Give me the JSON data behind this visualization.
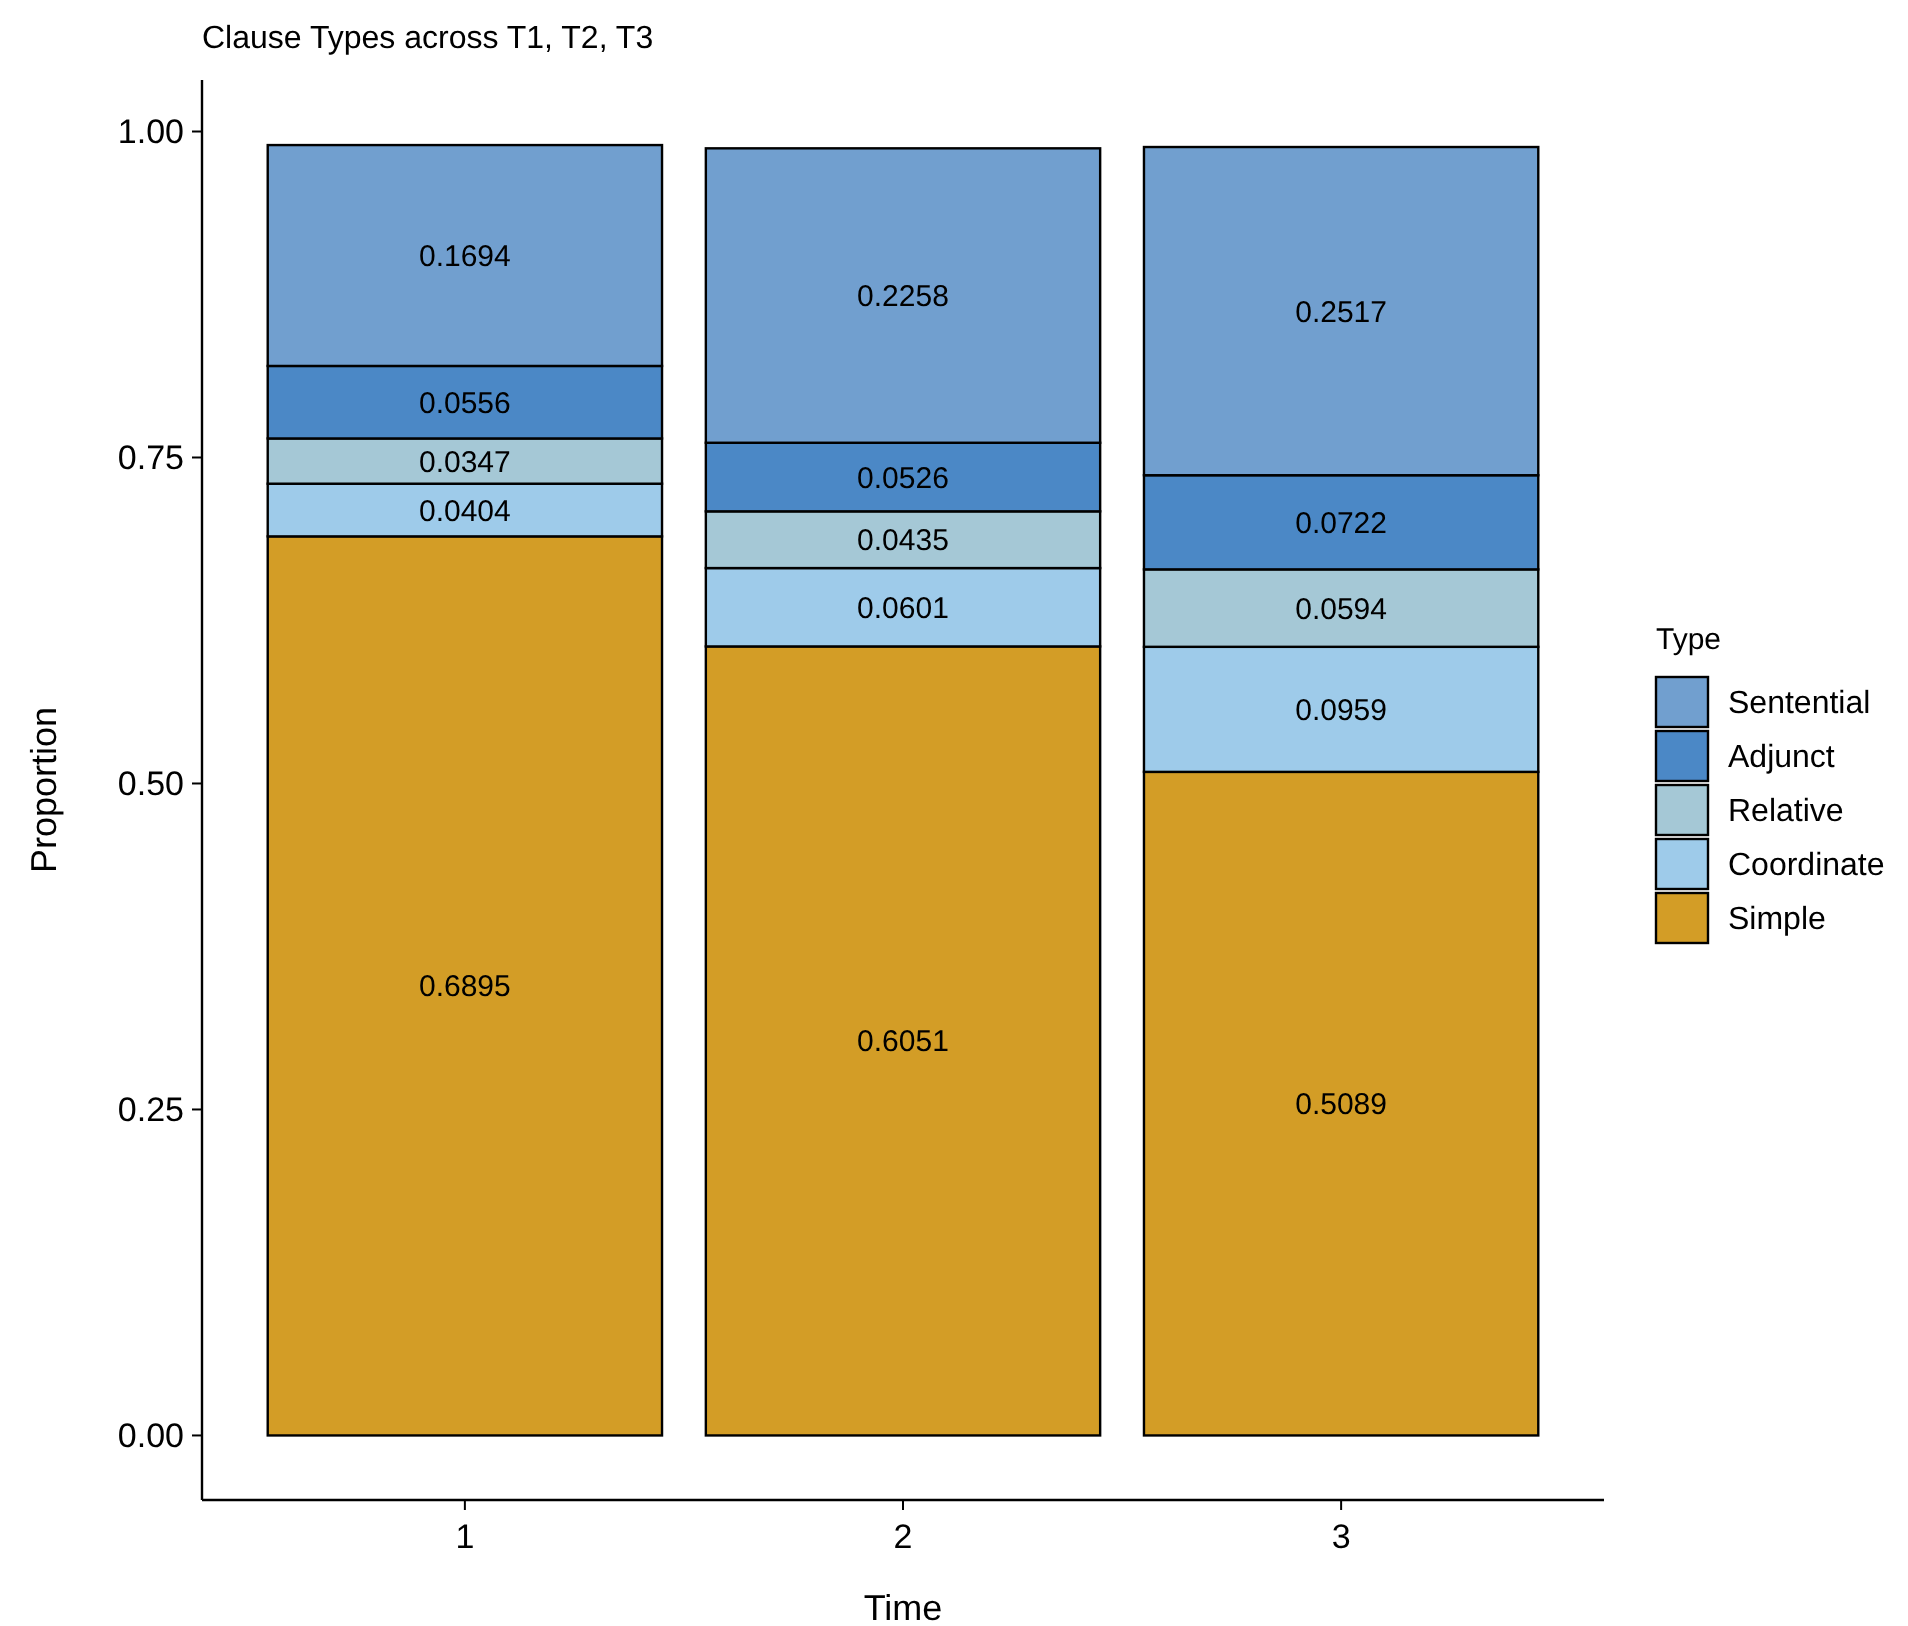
{
  "chart_data": {
    "type": "bar",
    "title": "Clause Types across T1, T2, T3",
    "xlabel": "Time",
    "ylabel": "Proportion",
    "legend_title": "Type",
    "categories": [
      "1",
      "2",
      "3"
    ],
    "stacked": true,
    "data_labels": true,
    "legend": "right",
    "grid": false,
    "ylim": [
      -0.0495,
      1.0395
    ],
    "yticks": [
      {
        "value": 0,
        "label": "0.00"
      },
      {
        "value": 0.25,
        "label": "0.25"
      },
      {
        "value": 0.5,
        "label": "0.50"
      },
      {
        "value": 0.75,
        "label": "0.75"
      },
      {
        "value": 1,
        "label": "1.00"
      }
    ],
    "series": [
      {
        "name": "Simple",
        "color": "#d39d26",
        "values": [
          0.6895,
          0.6051,
          0.5089
        ]
      },
      {
        "name": "Coordinate",
        "color": "#9ecbea",
        "values": [
          0.0404,
          0.0601,
          0.0959
        ]
      },
      {
        "name": "Relative",
        "color": "#a5c8d6",
        "values": [
          0.0347,
          0.0435,
          0.0594
        ]
      },
      {
        "name": "Adjunct",
        "color": "#4b88c6",
        "values": [
          0.0556,
          0.0526,
          0.0722
        ]
      },
      {
        "name": "Sentential",
        "color": "#719fcf",
        "values": [
          0.1694,
          0.2258,
          0.2517
        ]
      }
    ]
  }
}
